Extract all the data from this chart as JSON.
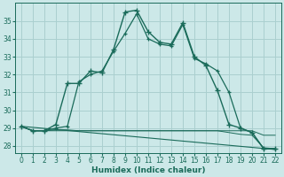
{
  "xlabel": "Humidex (Indice chaleur)",
  "background_color": "#cce8e8",
  "grid_color": "#aacfcf",
  "line_color": "#1a6b5a",
  "xlim": [
    -0.5,
    22.5
  ],
  "ylim": [
    27.6,
    36.0
  ],
  "yticks": [
    28,
    29,
    30,
    31,
    32,
    33,
    34,
    35
  ],
  "xticks": [
    0,
    1,
    2,
    3,
    4,
    5,
    6,
    7,
    8,
    9,
    10,
    11,
    12,
    13,
    14,
    15,
    16,
    17,
    18,
    19,
    20,
    21,
    22
  ],
  "flat_line1": {
    "x": [
      0,
      1,
      2,
      3,
      4,
      5,
      6,
      7,
      8,
      9,
      10,
      11,
      12,
      13,
      14,
      15,
      16,
      17,
      18,
      19,
      20,
      21,
      22
    ],
    "y": [
      29.1,
      28.85,
      28.85,
      28.85,
      28.85,
      28.85,
      28.85,
      28.85,
      28.85,
      28.85,
      28.85,
      28.85,
      28.85,
      28.85,
      28.85,
      28.85,
      28.85,
      28.85,
      28.85,
      28.85,
      28.85,
      28.6,
      28.6
    ]
  },
  "diagonal_line": {
    "x": [
      0,
      22
    ],
    "y": [
      29.1,
      27.8
    ]
  },
  "flat_line2": {
    "x": [
      0,
      1,
      2,
      3,
      4,
      5,
      6,
      7,
      8,
      9,
      10,
      11,
      12,
      13,
      14,
      15,
      16,
      17,
      18,
      19,
      20,
      21,
      22
    ],
    "y": [
      29.1,
      28.85,
      28.85,
      28.9,
      28.9,
      28.85,
      28.85,
      28.85,
      28.85,
      28.85,
      28.85,
      28.85,
      28.85,
      28.85,
      28.85,
      28.85,
      28.85,
      28.85,
      28.75,
      28.65,
      28.6,
      27.9,
      27.85
    ]
  },
  "main_curve": {
    "x": [
      0,
      1,
      2,
      3,
      4,
      5,
      6,
      7,
      8,
      9,
      10,
      11,
      12,
      13,
      14,
      15,
      16,
      17,
      18,
      19,
      20,
      21,
      22
    ],
    "y": [
      29.1,
      28.85,
      28.85,
      29.2,
      31.5,
      31.5,
      32.2,
      32.1,
      33.4,
      35.5,
      35.6,
      34.4,
      33.8,
      33.7,
      34.9,
      33.0,
      32.5,
      31.1,
      29.2,
      29.0,
      28.75,
      27.85,
      27.85
    ]
  },
  "second_curve": {
    "x": [
      0,
      1,
      2,
      3,
      4,
      5,
      6,
      7,
      8,
      9,
      10,
      11,
      12,
      13,
      14,
      15,
      16,
      17,
      18,
      19,
      20,
      21,
      22
    ],
    "y": [
      29.1,
      28.85,
      28.85,
      29.0,
      29.1,
      31.6,
      32.0,
      32.2,
      33.3,
      34.3,
      35.4,
      34.0,
      33.7,
      33.6,
      34.8,
      32.9,
      32.6,
      32.2,
      31.0,
      29.0,
      28.75,
      27.85,
      27.85
    ]
  }
}
